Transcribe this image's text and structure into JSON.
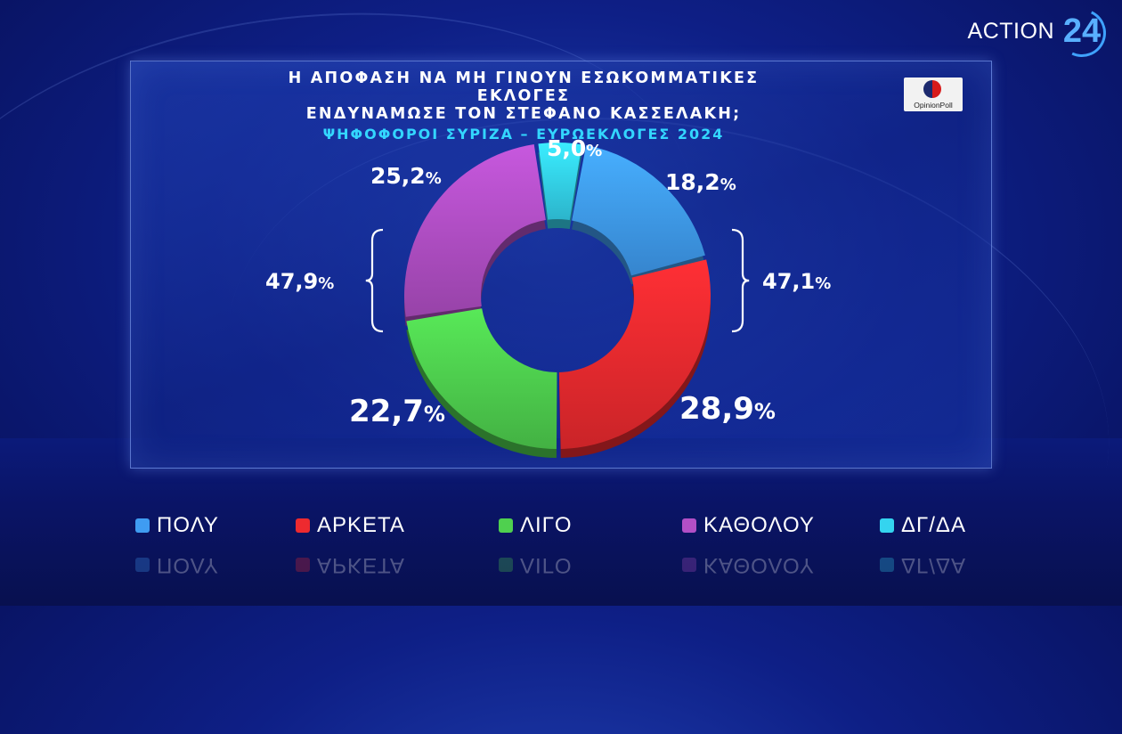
{
  "broadcaster": {
    "name": "ACTION",
    "number": "24"
  },
  "title_line1": "Η ΑΠΟΦΑΣΗ ΝΑ ΜΗ ΓΙΝΟΥΝ ΕΣΩΚΟΜΜΑΤΙΚΕΣ ΕΚΛΟΓΕΣ",
  "title_line2": "ΕΝΔΥΝΑΜΩΣΕ ΤΟΝ ΣΤΕΦΑΝΟ ΚΑΣΣΕΛΑΚΗ;",
  "subtitle": "ΨΗΦΟΦΟΡΟΙ ΣΥΡΙΖΑ – ΕΥΡΩΕΚΛΟΓΕΣ 2024",
  "pollster": "OpinionPoll",
  "chart_data": {
    "type": "pie",
    "style": "donut",
    "categories": [
      "ΠΟΛΥ",
      "ΑΡΚΕΤΑ",
      "ΛΙΓΟ",
      "ΚΑΘΟΛΟΥ",
      "ΔΓ/ΔΑ"
    ],
    "values": [
      18.2,
      28.9,
      22.7,
      25.2,
      5.0
    ],
    "value_labels": [
      "18,2",
      "28,9",
      "22,7",
      "25,2",
      "5,0"
    ],
    "unit": "%",
    "colors": [
      "#3f9cf2",
      "#ee2a2f",
      "#4fd04f",
      "#b24fc6",
      "#34d4ef"
    ],
    "legend_position": "bottom",
    "groups": [
      {
        "label": "47,1",
        "members": [
          "ΠΟΛΥ",
          "ΑΡΚΕΤΑ"
        ],
        "side": "right"
      },
      {
        "label": "47,9",
        "members": [
          "ΛΙΓΟ",
          "ΚΑΘΟΛΟΥ"
        ],
        "side": "left"
      }
    ]
  }
}
